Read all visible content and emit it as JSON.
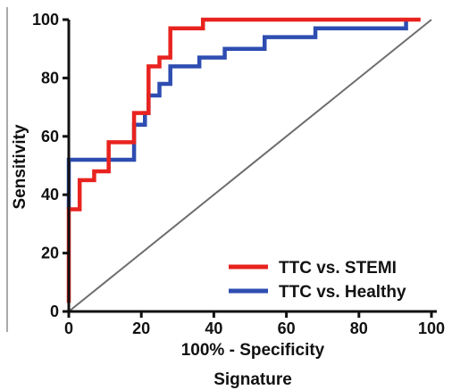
{
  "chart_data": {
    "type": "line",
    "title": "",
    "xlabel": "100% - Specificity",
    "ylabel": "Sensitivity",
    "caption": "Signature",
    "xlim": [
      0,
      100
    ],
    "ylim": [
      0,
      100
    ],
    "xticks": [
      0,
      20,
      40,
      60,
      80,
      100
    ],
    "yticks": [
      0,
      20,
      40,
      60,
      80,
      100
    ],
    "grid": false,
    "legend_position": "bottom-right",
    "series": [
      {
        "name": "TTC vs. STEMI",
        "color": "#e8231f",
        "x": [
          0,
          0,
          0,
          3,
          3,
          7,
          7,
          11,
          11,
          18,
          18,
          22,
          22,
          25,
          25,
          28,
          28,
          37,
          37,
          97
        ],
        "y": [
          3,
          35,
          35,
          35,
          45,
          45,
          48,
          48,
          58,
          58,
          68,
          68,
          84,
          84,
          87,
          87,
          97,
          97,
          100,
          100
        ]
      },
      {
        "name": "TTC vs. Healthy",
        "color": "#2e4db1",
        "x": [
          0,
          0,
          0,
          18,
          18,
          21,
          21,
          22,
          22,
          25,
          25,
          28,
          28,
          36,
          36,
          43,
          43,
          54,
          54,
          68,
          68,
          93,
          93
        ],
        "y": [
          35,
          35,
          52,
          52,
          64,
          64,
          68,
          68,
          74,
          74,
          78,
          78,
          84,
          84,
          87,
          87,
          90,
          90,
          94,
          94,
          97,
          97,
          100
        ]
      },
      {
        "name": "",
        "color": "#6d6d6d",
        "x": [
          0,
          100
        ],
        "y": [
          0,
          100
        ]
      }
    ]
  }
}
